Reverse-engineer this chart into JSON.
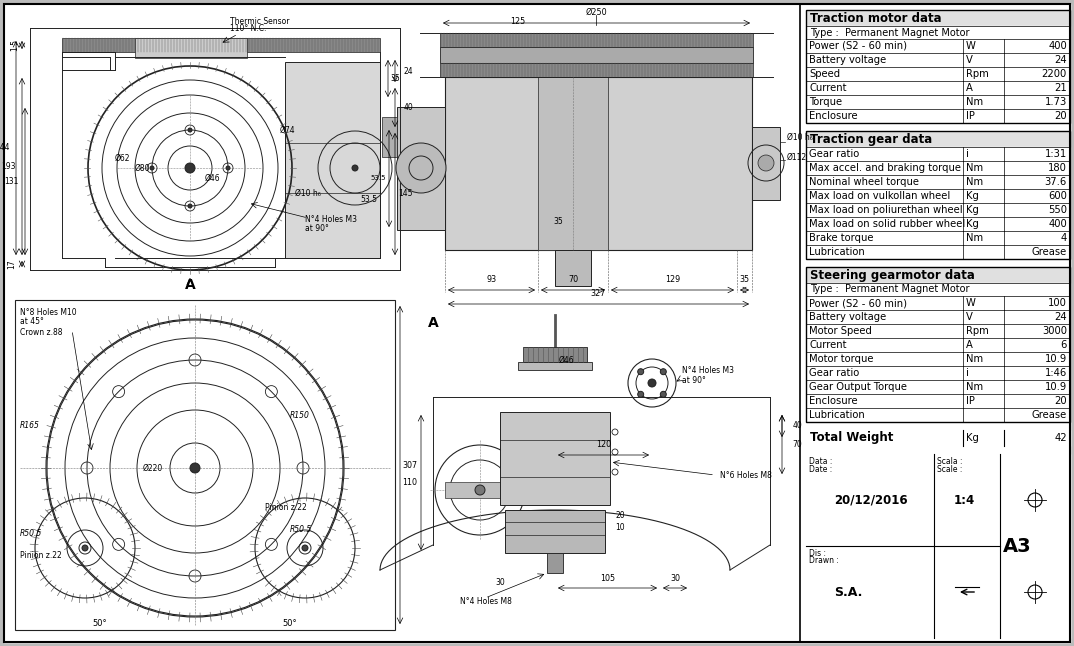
{
  "bg_color": "#e8e8e8",
  "drawing_bg": "#ffffff",
  "table_bg": "#ffffff",
  "traction_motor": {
    "title": "Traction motor data",
    "subtitle": "Type :  Permanent Magnet Motor",
    "rows": [
      [
        "Power (S2 - 60 min)",
        "W",
        "400"
      ],
      [
        "Battery voltage",
        "V",
        "24"
      ],
      [
        "Speed",
        "Rpm",
        "2200"
      ],
      [
        "Current",
        "A",
        "21"
      ],
      [
        "Torque",
        "Nm",
        "1.73"
      ],
      [
        "Enclosure",
        "IP",
        "20"
      ]
    ]
  },
  "traction_gear": {
    "title": "Traction gear data",
    "rows": [
      [
        "Gear ratio",
        "i",
        "1:31"
      ],
      [
        "Max accel. and braking torque",
        "Nm",
        "180"
      ],
      [
        "Nominal wheel torque",
        "Nm",
        "37.6"
      ],
      [
        "Max load on vulkollan wheel",
        "Kg",
        "600"
      ],
      [
        "Max load on poliurethan wheel",
        "Kg",
        "550"
      ],
      [
        "Max load on solid rubber wheel",
        "Kg",
        "400"
      ],
      [
        "Brake torque",
        "Nm",
        "4"
      ],
      [
        "Lubrication",
        "",
        "Grease"
      ]
    ]
  },
  "steering_gear": {
    "title": "Steering gearmotor data",
    "subtitle": "Type :  Permanent Magnet Motor",
    "rows": [
      [
        "Power (S2 - 60 min)",
        "W",
        "100"
      ],
      [
        "Battery voltage",
        "V",
        "24"
      ],
      [
        "Motor Speed",
        "Rpm",
        "3000"
      ],
      [
        "Current",
        "A",
        "6"
      ],
      [
        "Motor torque",
        "Nm",
        "10.9"
      ],
      [
        "Gear ratio",
        "i",
        "1:46"
      ],
      [
        "Gear Output Torque",
        "Nm",
        "10.9"
      ],
      [
        "Enclosure",
        "IP",
        "20"
      ],
      [
        "Lubrication",
        "",
        "Grease"
      ]
    ]
  },
  "total_weight": {
    "label": "Total Weight",
    "unit": "Kg",
    "value": "42"
  },
  "footer": {
    "date_label": "Data :",
    "date2_label": "Date :",
    "date_value": "20/12/2016",
    "scale_label": "Scala :",
    "scale_value": "1:4",
    "scale2_label": "Scale :",
    "dis_label": "Dis :",
    "drawn_label": "Drawn :",
    "drawn_value": "S.A.",
    "doc_num": "A3"
  }
}
